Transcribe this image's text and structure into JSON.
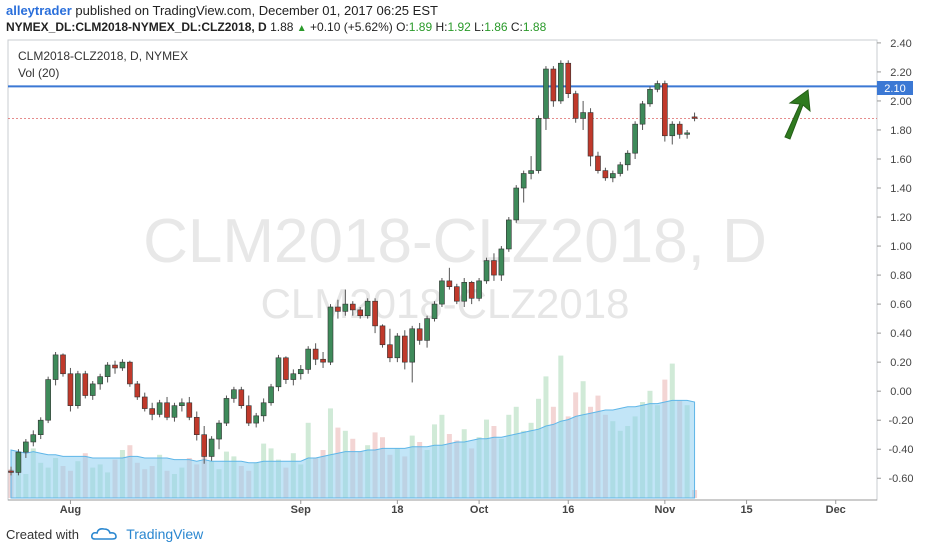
{
  "header": {
    "user": "alleytrader",
    "published_text": "published on TradingView.com, December 01, 2017 06:25 EST",
    "symbol": "NYMEX_DL:CLM2018-NYMEX_DL:CLZ2018, D",
    "last": "1.88",
    "change": "+0.10 (+5.62%)",
    "open_label": "O:",
    "open": "1.89",
    "high_label": "H:",
    "high": "1.92",
    "low_label": "L:",
    "low": "1.86",
    "close_label": "C:",
    "close": "1.88"
  },
  "legend": {
    "title": "CLM2018-CLZ2018, D, NYMEX",
    "volume": "Vol (20)"
  },
  "watermark": {
    "line1": "CLM2018-CLZ2018, D",
    "line2": "CLM2018-CLZ2018"
  },
  "footer": {
    "created_with": "Created with",
    "brand": "TradingView"
  },
  "colors": {
    "up": "#3e8a5a",
    "down": "#c0392b",
    "hline": "#3b78d4",
    "arrow": "#2f7a1f",
    "vol_ma": "#7fc4ee"
  },
  "chart_data": {
    "type": "candlestick",
    "ylim": [
      -0.75,
      2.42
    ],
    "y_ticks": [
      2.4,
      2.2,
      2.0,
      1.8,
      1.6,
      1.4,
      1.2,
      1.0,
      0.8,
      0.6,
      0.4,
      0.2,
      0.0,
      -0.2,
      -0.4,
      -0.6
    ],
    "y_tick_labels": [
      "2.40",
      "2.20",
      "2.00",
      "1.80",
      "1.60",
      "1.40",
      "1.20",
      "1.00",
      "0.80",
      "0.60",
      "0.40",
      "0.20",
      "0.00",
      "-0.20",
      "-0.40",
      "-0.60"
    ],
    "x_labels": [
      {
        "label": "Aug",
        "bar": 8
      },
      {
        "label": "Sep",
        "bar": 39
      },
      {
        "label": "18",
        "bar": 52
      },
      {
        "label": "Oct",
        "bar": 63
      },
      {
        "label": "16",
        "bar": 75
      },
      {
        "label": "Nov",
        "bar": 88
      },
      {
        "label": "15",
        "bar": 99
      },
      {
        "label": "Dec",
        "bar": 111
      }
    ],
    "horizontal_line": 2.1,
    "horizontal_line_label": "2.10",
    "last_price": 1.88,
    "candles": [
      [
        -0.55,
        -0.52,
        -0.58,
        -0.56
      ],
      [
        -0.56,
        -0.4,
        -0.58,
        -0.42
      ],
      [
        -0.42,
        -0.33,
        -0.46,
        -0.35
      ],
      [
        -0.35,
        -0.27,
        -0.38,
        -0.3
      ],
      [
        -0.3,
        -0.18,
        -0.33,
        -0.2
      ],
      [
        -0.2,
        0.1,
        -0.22,
        0.08
      ],
      [
        0.08,
        0.27,
        0.04,
        0.25
      ],
      [
        0.25,
        0.26,
        0.1,
        0.12
      ],
      [
        0.12,
        0.16,
        -0.14,
        -0.1
      ],
      [
        -0.1,
        0.14,
        -0.12,
        0.12
      ],
      [
        0.12,
        0.14,
        -0.05,
        -0.03
      ],
      [
        -0.03,
        0.07,
        -0.06,
        0.05
      ],
      [
        0.05,
        0.12,
        0.01,
        0.1
      ],
      [
        0.1,
        0.2,
        0.06,
        0.18
      ],
      [
        0.18,
        0.21,
        0.12,
        0.16
      ],
      [
        0.16,
        0.22,
        0.14,
        0.2
      ],
      [
        0.2,
        0.21,
        0.03,
        0.05
      ],
      [
        0.05,
        0.07,
        -0.06,
        -0.04
      ],
      [
        -0.04,
        -0.01,
        -0.14,
        -0.12
      ],
      [
        -0.12,
        -0.08,
        -0.2,
        -0.16
      ],
      [
        -0.16,
        -0.06,
        -0.18,
        -0.08
      ],
      [
        -0.08,
        -0.04,
        -0.2,
        -0.18
      ],
      [
        -0.18,
        -0.08,
        -0.21,
        -0.1
      ],
      [
        -0.1,
        -0.05,
        -0.14,
        -0.08
      ],
      [
        -0.08,
        -0.04,
        -0.2,
        -0.18
      ],
      [
        -0.18,
        -0.14,
        -0.34,
        -0.3
      ],
      [
        -0.3,
        -0.24,
        -0.5,
        -0.45
      ],
      [
        -0.45,
        -0.31,
        -0.48,
        -0.33
      ],
      [
        -0.33,
        -0.2,
        -0.4,
        -0.22
      ],
      [
        -0.22,
        -0.03,
        -0.24,
        -0.05
      ],
      [
        -0.05,
        0.03,
        -0.08,
        0.01
      ],
      [
        0.01,
        0.03,
        -0.12,
        -0.1
      ],
      [
        -0.1,
        -0.03,
        -0.24,
        -0.22
      ],
      [
        -0.22,
        -0.15,
        -0.25,
        -0.17
      ],
      [
        -0.17,
        -0.05,
        -0.21,
        -0.08
      ],
      [
        -0.08,
        0.05,
        -0.1,
        0.03
      ],
      [
        0.03,
        0.25,
        0.0,
        0.23
      ],
      [
        0.23,
        0.24,
        0.05,
        0.08
      ],
      [
        0.08,
        0.15,
        0.04,
        0.12
      ],
      [
        0.12,
        0.18,
        0.08,
        0.15
      ],
      [
        0.15,
        0.31,
        0.12,
        0.29
      ],
      [
        0.29,
        0.33,
        0.18,
        0.22
      ],
      [
        0.22,
        0.27,
        0.16,
        0.2
      ],
      [
        0.2,
        0.6,
        0.18,
        0.58
      ],
      [
        0.58,
        0.63,
        0.5,
        0.55
      ],
      [
        0.55,
        0.7,
        0.52,
        0.6
      ],
      [
        0.6,
        0.62,
        0.52,
        0.56
      ],
      [
        0.56,
        0.58,
        0.5,
        0.52
      ],
      [
        0.52,
        0.64,
        0.5,
        0.62
      ],
      [
        0.62,
        0.64,
        0.4,
        0.45
      ],
      [
        0.45,
        0.46,
        0.3,
        0.32
      ],
      [
        0.32,
        0.43,
        0.2,
        0.23
      ],
      [
        0.23,
        0.4,
        0.2,
        0.38
      ],
      [
        0.38,
        0.42,
        0.15,
        0.2
      ],
      [
        0.2,
        0.45,
        0.06,
        0.43
      ],
      [
        0.43,
        0.47,
        0.32,
        0.35
      ],
      [
        0.35,
        0.52,
        0.3,
        0.5
      ],
      [
        0.5,
        0.62,
        0.48,
        0.6
      ],
      [
        0.6,
        0.78,
        0.58,
        0.76
      ],
      [
        0.76,
        0.85,
        0.7,
        0.72
      ],
      [
        0.72,
        0.74,
        0.6,
        0.62
      ],
      [
        0.62,
        0.78,
        0.58,
        0.75
      ],
      [
        0.75,
        0.76,
        0.6,
        0.64
      ],
      [
        0.64,
        0.78,
        0.62,
        0.76
      ],
      [
        0.76,
        0.92,
        0.74,
        0.9
      ],
      [
        0.9,
        0.95,
        0.76,
        0.8
      ],
      [
        0.8,
        1.0,
        0.76,
        0.98
      ],
      [
        0.98,
        1.2,
        0.96,
        1.18
      ],
      [
        1.18,
        1.42,
        1.16,
        1.4
      ],
      [
        1.4,
        1.52,
        1.3,
        1.5
      ],
      [
        1.5,
        1.62,
        1.46,
        1.52
      ],
      [
        1.52,
        1.9,
        1.5,
        1.88
      ],
      [
        1.88,
        2.24,
        1.8,
        2.22
      ],
      [
        2.22,
        2.24,
        1.96,
        2.0
      ],
      [
        2.0,
        2.28,
        1.98,
        2.26
      ],
      [
        2.26,
        2.28,
        2.02,
        2.05
      ],
      [
        2.05,
        2.07,
        1.85,
        1.88
      ],
      [
        1.88,
        2.0,
        1.8,
        1.92
      ],
      [
        1.92,
        1.95,
        1.55,
        1.62
      ],
      [
        1.62,
        1.65,
        1.5,
        1.52
      ],
      [
        1.52,
        1.54,
        1.45,
        1.47
      ],
      [
        1.47,
        1.52,
        1.44,
        1.5
      ],
      [
        1.5,
        1.58,
        1.48,
        1.56
      ],
      [
        1.56,
        1.66,
        1.52,
        1.64
      ],
      [
        1.64,
        1.86,
        1.6,
        1.84
      ],
      [
        1.84,
        2.0,
        1.8,
        1.98
      ],
      [
        1.98,
        2.1,
        1.96,
        2.08
      ],
      [
        2.08,
        2.14,
        2.06,
        2.12
      ],
      [
        2.12,
        2.14,
        1.72,
        1.76
      ],
      [
        1.76,
        1.86,
        1.7,
        1.84
      ],
      [
        1.84,
        1.86,
        1.74,
        1.77
      ],
      [
        1.77,
        1.8,
        1.74,
        1.78
      ],
      [
        1.89,
        1.92,
        1.86,
        1.88
      ]
    ],
    "volume": [
      0.18,
      0.21,
      0.15,
      0.31,
      0.22,
      0.19,
      0.25,
      0.2,
      0.17,
      0.23,
      0.28,
      0.19,
      0.21,
      0.16,
      0.24,
      0.3,
      0.33,
      0.22,
      0.18,
      0.2,
      0.27,
      0.17,
      0.15,
      0.19,
      0.25,
      0.21,
      0.36,
      0.23,
      0.18,
      0.29,
      0.26,
      0.2,
      0.17,
      0.22,
      0.34,
      0.31,
      0.24,
      0.19,
      0.28,
      0.21,
      0.47,
      0.25,
      0.3,
      0.56,
      0.44,
      0.42,
      0.37,
      0.29,
      0.33,
      0.41,
      0.38,
      0.27,
      0.31,
      0.26,
      0.39,
      0.35,
      0.3,
      0.46,
      0.52,
      0.4,
      0.36,
      0.43,
      0.31,
      0.38,
      0.49,
      0.45,
      0.37,
      0.52,
      0.57,
      0.42,
      0.47,
      0.62,
      0.76,
      0.57,
      0.89,
      0.51,
      0.66,
      0.73,
      0.57,
      0.64,
      0.52,
      0.48,
      0.42,
      0.45,
      0.51,
      0.6,
      0.67,
      0.58,
      0.74,
      0.84,
      0.61,
      0.58,
      0.05
    ],
    "volume_ma": [
      0.3,
      0.29,
      0.28,
      0.29,
      0.28,
      0.27,
      0.27,
      0.26,
      0.26,
      0.26,
      0.26,
      0.25,
      0.25,
      0.25,
      0.25,
      0.25,
      0.26,
      0.26,
      0.25,
      0.25,
      0.25,
      0.25,
      0.24,
      0.24,
      0.24,
      0.23,
      0.24,
      0.23,
      0.23,
      0.23,
      0.23,
      0.23,
      0.22,
      0.22,
      0.23,
      0.23,
      0.23,
      0.23,
      0.23,
      0.23,
      0.25,
      0.25,
      0.26,
      0.27,
      0.28,
      0.29,
      0.29,
      0.29,
      0.3,
      0.3,
      0.31,
      0.31,
      0.31,
      0.31,
      0.32,
      0.32,
      0.32,
      0.33,
      0.33,
      0.34,
      0.35,
      0.35,
      0.36,
      0.37,
      0.37,
      0.38,
      0.38,
      0.39,
      0.4,
      0.41,
      0.42,
      0.43,
      0.45,
      0.46,
      0.48,
      0.49,
      0.51,
      0.52,
      0.53,
      0.54,
      0.55,
      0.55,
      0.56,
      0.57,
      0.57,
      0.58,
      0.59,
      0.59,
      0.6,
      0.61,
      0.61,
      0.61,
      0.6
    ]
  }
}
